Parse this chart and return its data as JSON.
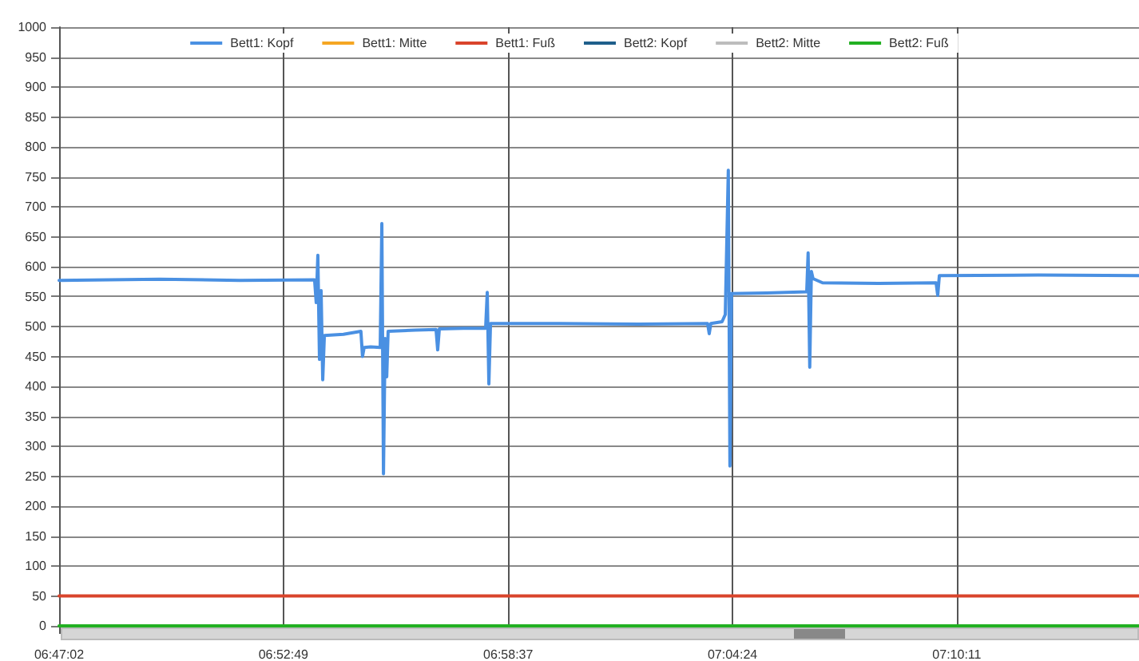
{
  "chart_data": {
    "type": "line",
    "xlim": [
      6.7839,
      7.248
    ],
    "xticks": [
      {
        "value": 6.7839,
        "label": "06:47:02"
      },
      {
        "value": 6.8803,
        "label": "06:52:49"
      },
      {
        "value": 6.9769,
        "label": "06:58:37"
      },
      {
        "value": 7.0733,
        "label": "07:04:24"
      },
      {
        "value": 7.1697,
        "label": "07:10:11"
      }
    ],
    "ylim": [
      0,
      1000
    ],
    "yticks": [
      0,
      50,
      100,
      150,
      200,
      250,
      300,
      350,
      400,
      450,
      500,
      550,
      600,
      650,
      700,
      750,
      800,
      850,
      900,
      950,
      1000
    ],
    "grid": true,
    "legend": "top",
    "marker": "none",
    "line_style": "solid",
    "series": [
      {
        "name": "Bett1: Kopf",
        "color": "#4a90e2",
        "x": [
          6.7839,
          6.8271,
          6.8615,
          6.8937,
          6.8944,
          6.8951,
          6.8958,
          6.8965,
          6.8972,
          6.8979,
          6.9061,
          6.9136,
          6.9143,
          6.915,
          6.9178,
          6.9219,
          6.9226,
          6.9233,
          6.924,
          6.9247,
          6.9253,
          6.937,
          6.9459,
          6.9466,
          6.9473,
          6.9576,
          6.9672,
          6.9679,
          6.9686,
          6.9693,
          6.9988,
          7.0331,
          7.0626,
          7.0633,
          7.064,
          7.0688,
          7.0702,
          7.0715,
          7.0722,
          7.0729,
          7.088,
          7.1052,
          7.1058,
          7.1065,
          7.1072,
          7.1079,
          7.112,
          7.1361,
          7.1608,
          7.1615,
          7.1622,
          7.2047,
          7.248
        ],
        "values": [
          577,
          579,
          577,
          578,
          540,
          619,
          445,
          560,
          411,
          485,
          487,
          492,
          450,
          465,
          466,
          465,
          672,
          254,
          480,
          416,
          492,
          494,
          495,
          461,
          496,
          497,
          497,
          557,
          404,
          505,
          505,
          504,
          505,
          488,
          505,
          508,
          520,
          761,
          267,
          555,
          556,
          558,
          623,
          432,
          592,
          580,
          573,
          572,
          573,
          552,
          585,
          586,
          585
        ]
      },
      {
        "name": "Bett1: Mitte",
        "color": "#f5a623"
      },
      {
        "name": "Bett1: Fuß",
        "color": "#d9442b",
        "x": [
          6.7839,
          7.248
        ],
        "values": [
          50,
          50
        ]
      },
      {
        "name": "Bett2: Kopf",
        "color": "#1f5f8b"
      },
      {
        "name": "Bett2: Mitte",
        "color": "#bdbdbd"
      },
      {
        "name": "Bett2: Fuß",
        "color": "#22b022",
        "x": [
          6.7839,
          7.248
        ],
        "values": [
          0,
          0
        ]
      }
    ]
  }
}
